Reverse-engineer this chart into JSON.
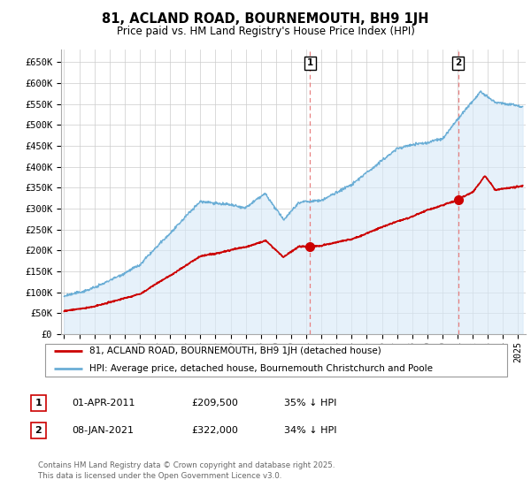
{
  "title": "81, ACLAND ROAD, BOURNEMOUTH, BH9 1JH",
  "subtitle": "Price paid vs. HM Land Registry's House Price Index (HPI)",
  "ylabel_ticks": [
    "£0",
    "£50K",
    "£100K",
    "£150K",
    "£200K",
    "£250K",
    "£300K",
    "£350K",
    "£400K",
    "£450K",
    "£500K",
    "£550K",
    "£600K",
    "£650K"
  ],
  "ytick_values": [
    0,
    50000,
    100000,
    150000,
    200000,
    250000,
    300000,
    350000,
    400000,
    450000,
    500000,
    550000,
    600000,
    650000
  ],
  "ylim": [
    0,
    680000
  ],
  "xlim_start": 1994.8,
  "xlim_end": 2025.5,
  "hpi_color": "#6baed6",
  "hpi_fill_color": "#d6e9f8",
  "price_color": "#cc0000",
  "vline_color": "#e88080",
  "marker1_date": 2011.25,
  "marker1_price": 209500,
  "marker1_label": "1",
  "marker2_date": 2021.03,
  "marker2_price": 322000,
  "marker2_label": "2",
  "legend_line1": "81, ACLAND ROAD, BOURNEMOUTH, BH9 1JH (detached house)",
  "legend_line2": "HPI: Average price, detached house, Bournemouth Christchurch and Poole",
  "table_row1": [
    "1",
    "01-APR-2011",
    "£209,500",
    "35% ↓ HPI"
  ],
  "table_row2": [
    "2",
    "08-JAN-2021",
    "£322,000",
    "34% ↓ HPI"
  ],
  "footer": "Contains HM Land Registry data © Crown copyright and database right 2025.\nThis data is licensed under the Open Government Licence v3.0.",
  "background_color": "#ffffff",
  "grid_color": "#cccccc",
  "chart_bg_color": "#f0f4f8"
}
